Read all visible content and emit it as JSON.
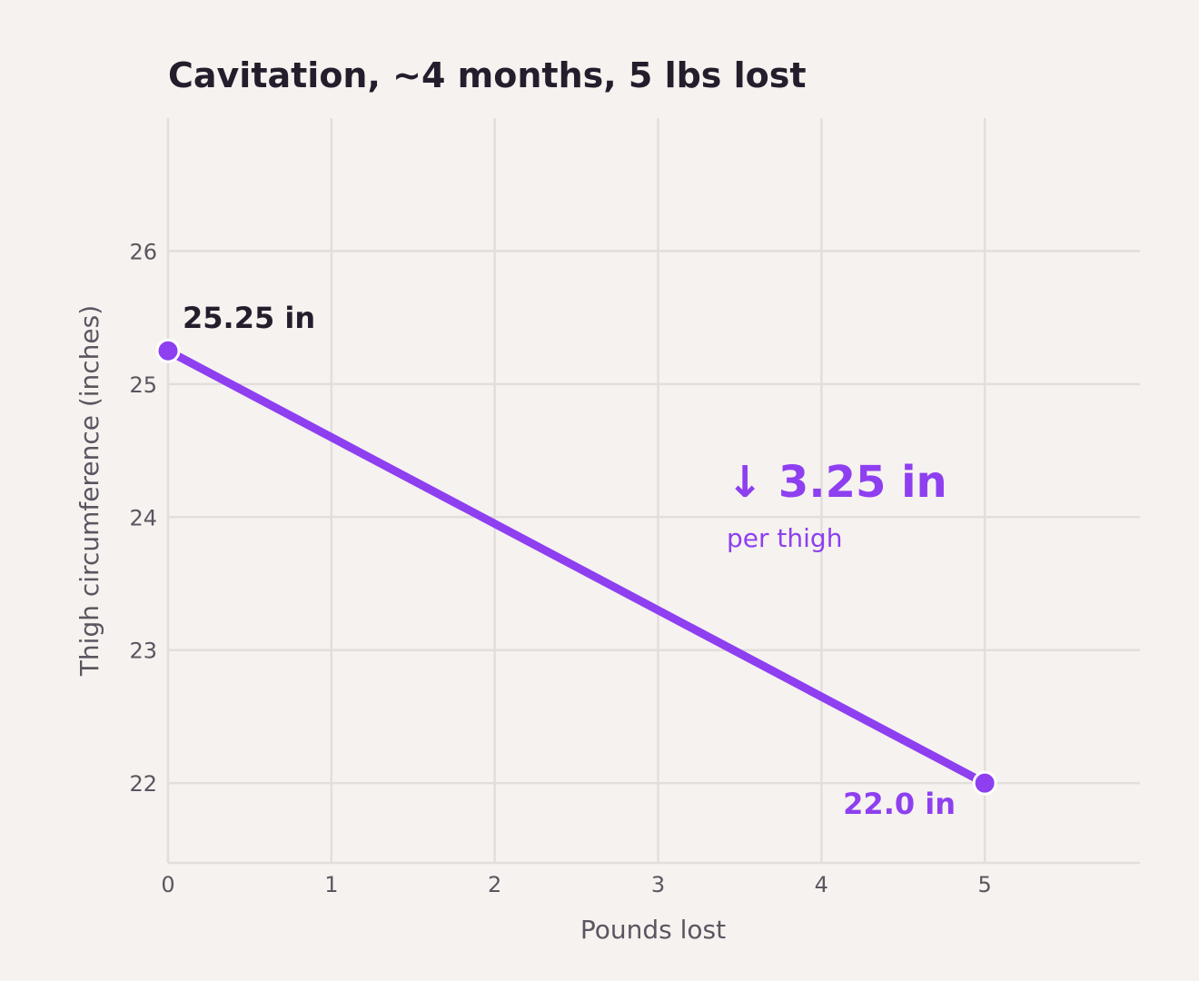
{
  "chart_data": {
    "type": "line",
    "title": "Cavitation, ~4 months, 5 lbs lost",
    "xlabel": "Pounds lost",
    "ylabel": "Thigh circumference (inches)",
    "xlim": [
      0,
      5.95
    ],
    "ylim": [
      21.4,
      27
    ],
    "x_ticks": [
      "0",
      "1",
      "2",
      "3",
      "4",
      "5"
    ],
    "y_ticks": [
      "22",
      "23",
      "24",
      "25",
      "26"
    ],
    "grid": true,
    "series": [
      {
        "x": [
          0,
          5
        ],
        "y": [
          25.25,
          22.0
        ]
      }
    ],
    "annotations": {
      "start_label": "25.25 in",
      "end_label": "22.0 in",
      "change_label": "↓ 3.25 in",
      "change_sub": "per thigh"
    },
    "colors": {
      "line": "#8e3ff0",
      "start_label": "#241d2c",
      "accent": "#8e3ff0"
    }
  }
}
